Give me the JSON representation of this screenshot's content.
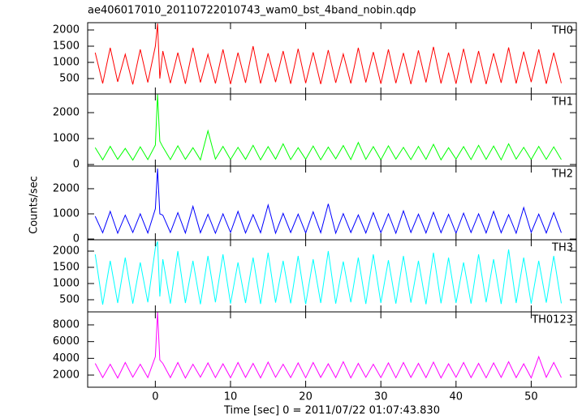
{
  "title": "ae406017010_20110722010743_wam0_bst_4band_nobin.qdp",
  "ylabel": "Counts/sec",
  "xlabel": "Time [sec] 0 = 2011/07/22 01:07:43.830",
  "chart_data": [
    {
      "type": "line",
      "xlim": [
        -9,
        56
      ],
      "ylim": [
        25,
        2225
      ],
      "yticks": [
        500,
        1000,
        1500,
        2000
      ],
      "x": [
        -8,
        -7,
        -6,
        -5,
        -4,
        -3,
        -2,
        -1,
        0,
        0.3,
        0.6,
        1,
        2,
        3,
        4,
        5,
        6,
        7,
        8,
        9,
        10,
        11,
        12,
        13,
        14,
        15,
        16,
        17,
        18,
        19,
        20,
        21,
        22,
        23,
        24,
        25,
        26,
        27,
        28,
        29,
        30,
        31,
        32,
        33,
        34,
        35,
        36,
        37,
        38,
        39,
        40,
        41,
        42,
        43,
        44,
        45,
        46,
        47,
        48,
        49,
        50,
        51,
        52,
        53,
        54
      ],
      "series": [
        {
          "name": "TH0",
          "color": "#ff0000",
          "values": [
            1300,
            350,
            1450,
            400,
            1250,
            320,
            1400,
            380,
            1500,
            2200,
            500,
            1350,
            360,
            1300,
            340,
            1450,
            380,
            1250,
            350,
            1400,
            330,
            1300,
            370,
            1500,
            350,
            1280,
            390,
            1350,
            340,
            1420,
            360,
            1310,
            330,
            1380,
            370,
            1260,
            350,
            1450,
            380,
            1320,
            340,
            1400,
            360,
            1290,
            330,
            1370,
            380,
            1480,
            350,
            1300,
            340,
            1420,
            360,
            1350,
            330,
            1280,
            370,
            1460,
            350,
            1330,
            390,
            1400,
            340,
            1300,
            360
          ]
        }
      ]
    },
    {
      "type": "line",
      "xlim": [
        -9,
        56
      ],
      "ylim": [
        -60,
        2720
      ],
      "yticks": [
        0,
        1000,
        2000
      ],
      "x": [
        -8,
        -7,
        -6,
        -5,
        -4,
        -3,
        -2,
        -1,
        0,
        0.3,
        0.6,
        1,
        2,
        3,
        4,
        5,
        6,
        7,
        8,
        9,
        10,
        11,
        12,
        13,
        14,
        15,
        16,
        17,
        18,
        19,
        20,
        21,
        22,
        23,
        24,
        25,
        26,
        27,
        28,
        29,
        30,
        31,
        32,
        33,
        34,
        35,
        36,
        37,
        38,
        39,
        40,
        41,
        42,
        43,
        44,
        45,
        46,
        47,
        48,
        49,
        50,
        51,
        52,
        53,
        54
      ],
      "series": [
        {
          "name": "TH1",
          "color": "#00ff00",
          "values": [
            650,
            180,
            700,
            200,
            620,
            170,
            680,
            190,
            750,
            2700,
            900,
            680,
            190,
            720,
            200,
            650,
            180,
            1300,
            210,
            700,
            190,
            660,
            200,
            740,
            180,
            690,
            210,
            800,
            190,
            650,
            200,
            710,
            180,
            670,
            220,
            730,
            190,
            850,
            200,
            690,
            180,
            720,
            210,
            660,
            190,
            700,
            200,
            780,
            180,
            650,
            210,
            690,
            190,
            740,
            200,
            710,
            180,
            800,
            210,
            660,
            190,
            700,
            200,
            680,
            190
          ]
        }
      ]
    },
    {
      "type": "line",
      "xlim": [
        -9,
        56
      ],
      "ylim": [
        -30,
        2900
      ],
      "yticks": [
        0,
        1000,
        2000
      ],
      "x": [
        -8,
        -7,
        -6,
        -5,
        -4,
        -3,
        -2,
        -1,
        0,
        0.3,
        0.6,
        1,
        2,
        3,
        4,
        5,
        6,
        7,
        8,
        9,
        10,
        11,
        12,
        13,
        14,
        15,
        16,
        17,
        18,
        19,
        20,
        21,
        22,
        23,
        24,
        25,
        26,
        27,
        28,
        29,
        30,
        31,
        32,
        33,
        34,
        35,
        36,
        37,
        38,
        39,
        40,
        41,
        42,
        43,
        44,
        45,
        46,
        47,
        48,
        49,
        50,
        51,
        52,
        53,
        54
      ],
      "series": [
        {
          "name": "TH2",
          "color": "#0000ff",
          "values": [
            900,
            250,
            1100,
            230,
            950,
            260,
            1000,
            240,
            1200,
            2800,
            1000,
            950,
            260,
            1050,
            240,
            1300,
            250,
            980,
            230,
            1000,
            260,
            1100,
            240,
            970,
            250,
            1350,
            230,
            1020,
            260,
            990,
            240,
            1080,
            250,
            1400,
            230,
            1010,
            260,
            960,
            240,
            1050,
            250,
            1000,
            230,
            1120,
            260,
            990,
            240,
            1060,
            250,
            980,
            230,
            1030,
            260,
            1000,
            240,
            1100,
            250,
            970,
            230,
            1250,
            260,
            990,
            240,
            1050,
            250
          ]
        }
      ]
    },
    {
      "type": "line",
      "xlim": [
        -9,
        56
      ],
      "ylim": [
        125,
        2350
      ],
      "yticks": [
        500,
        1000,
        1500,
        2000
      ],
      "x": [
        -8,
        -7,
        -6,
        -5,
        -4,
        -3,
        -2,
        -1,
        0,
        0.3,
        0.6,
        1,
        2,
        3,
        4,
        5,
        6,
        7,
        8,
        9,
        10,
        11,
        12,
        13,
        14,
        15,
        16,
        17,
        18,
        19,
        20,
        21,
        22,
        23,
        24,
        25,
        26,
        27,
        28,
        29,
        30,
        31,
        32,
        33,
        34,
        35,
        36,
        37,
        38,
        39,
        40,
        41,
        42,
        43,
        44,
        45,
        46,
        47,
        48,
        49,
        50,
        51,
        52,
        53,
        54
      ],
      "series": [
        {
          "name": "TH3",
          "color": "#00ffff",
          "values": [
            1900,
            350,
            1700,
            400,
            1800,
            380,
            1650,
            420,
            2100,
            2300,
            600,
            1750,
            380,
            2000,
            400,
            1700,
            360,
            1850,
            420,
            1900,
            380,
            1650,
            400,
            1800,
            370,
            1950,
            410,
            1700,
            390,
            1850,
            360,
            1750,
            400,
            2000,
            380,
            1680,
            420,
            1800,
            370,
            1900,
            400,
            1720,
            380,
            1850,
            410,
            1700,
            360,
            1950,
            390,
            1800,
            400,
            1650,
            380,
            1900,
            420,
            1750,
            370,
            2050,
            400,
            1800,
            380,
            1700,
            410,
            1850,
            390
          ]
        }
      ]
    },
    {
      "type": "line",
      "xlim": [
        -9,
        56
      ],
      "ylim": [
        550,
        9550
      ],
      "yticks": [
        2000,
        4000,
        6000,
        8000
      ],
      "xticks": [
        0,
        10,
        20,
        30,
        40,
        50
      ],
      "x": [
        -8,
        -7,
        -6,
        -5,
        -4,
        -3,
        -2,
        -1,
        0,
        0.3,
        0.6,
        1,
        2,
        3,
        4,
        5,
        6,
        7,
        8,
        9,
        10,
        11,
        12,
        13,
        14,
        15,
        16,
        17,
        18,
        19,
        20,
        21,
        22,
        23,
        24,
        25,
        26,
        27,
        28,
        29,
        30,
        31,
        32,
        33,
        34,
        35,
        36,
        37,
        38,
        39,
        40,
        41,
        42,
        43,
        44,
        45,
        46,
        47,
        48,
        49,
        50,
        51,
        52,
        53,
        54
      ],
      "series": [
        {
          "name": "TH0123",
          "color": "#ff00ff",
          "values": [
            3400,
            1700,
            3300,
            1650,
            3500,
            1750,
            3300,
            1700,
            4200,
            9500,
            3800,
            3400,
            1700,
            3500,
            1650,
            3300,
            1750,
            3450,
            1700,
            3350,
            1680,
            3500,
            1720,
            3400,
            1660,
            3550,
            1740,
            3300,
            1700,
            3450,
            1680,
            3500,
            1720,
            3350,
            1700,
            3600,
            1660,
            3400,
            1740,
            3300,
            1700,
            3450,
            1680,
            3500,
            1720,
            3400,
            1700,
            3550,
            1660,
            3350,
            1740,
            3500,
            1700,
            3400,
            1680,
            3450,
            1720,
            3600,
            1700,
            3350,
            1660,
            4200,
            1740,
            3500,
            1700
          ]
        }
      ]
    }
  ]
}
